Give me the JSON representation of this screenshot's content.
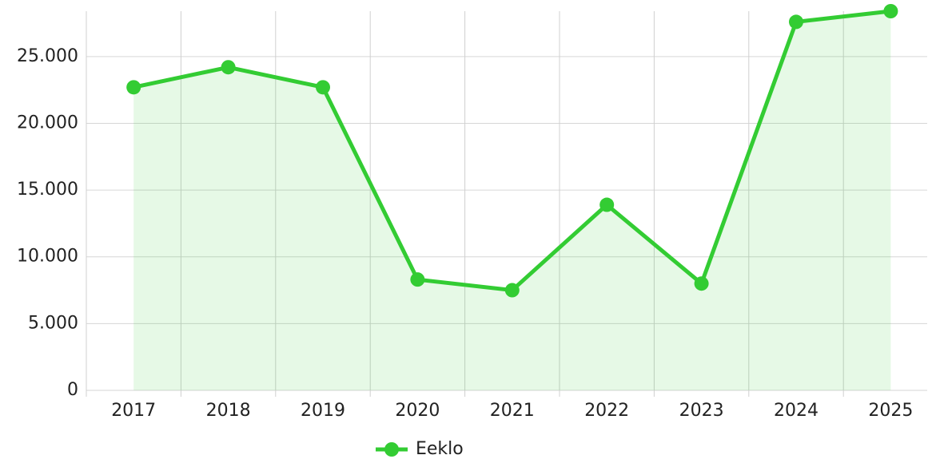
{
  "chart_data": {
    "type": "line",
    "categories": [
      "2017",
      "2018",
      "2019",
      "2020",
      "2021",
      "2022",
      "2023",
      "2024",
      "2025"
    ],
    "series": [
      {
        "name": "Eeklo",
        "color": "#33cc33",
        "values": [
          22700,
          24200,
          22700,
          8300,
          7500,
          13900,
          8000,
          27600,
          28400
        ]
      }
    ],
    "ylim": [
      0,
      28400
    ],
    "yticks": [
      0,
      {
        "value": 5000,
        "label": "5.000"
      },
      {
        "value": 10000,
        "label": "10.000"
      },
      {
        "value": 15000,
        "label": "15.000"
      },
      {
        "value": 20000,
        "label": "20.000"
      },
      {
        "value": 25000,
        "label": "25.000"
      }
    ],
    "grid": true,
    "area": true,
    "legend": "bottom"
  }
}
